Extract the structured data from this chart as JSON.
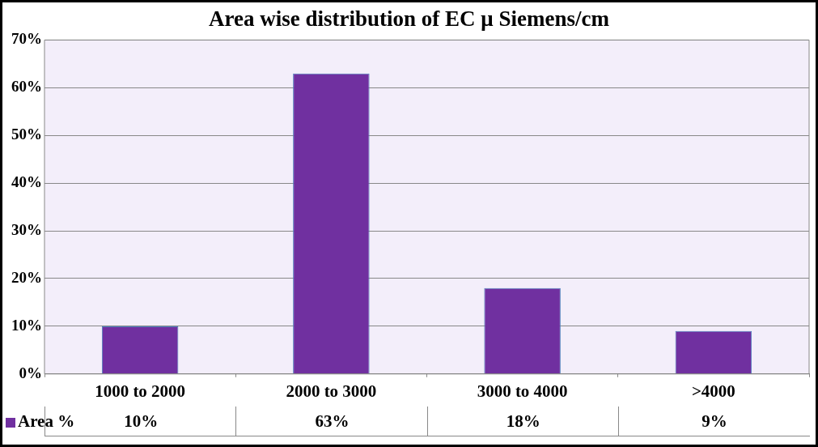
{
  "chart_data": {
    "type": "bar",
    "title": "Area wise distribution of EC μ Siemens/cm",
    "categories": [
      "1000 to 2000",
      "2000 to 3000",
      "3000 to 4000",
      ">4000"
    ],
    "series": [
      {
        "name": "Area %",
        "color": "#7030a0",
        "values": [
          10,
          63,
          18,
          9
        ]
      }
    ],
    "ylim": [
      0,
      70
    ],
    "yticks": [
      {
        "value": 0,
        "label": "0%"
      },
      {
        "value": 10,
        "label": "10%"
      },
      {
        "value": 20,
        "label": "20%"
      },
      {
        "value": 30,
        "label": "30%"
      },
      {
        "value": 40,
        "label": "40%"
      },
      {
        "value": 50,
        "label": "50%"
      },
      {
        "value": 60,
        "label": "60%"
      },
      {
        "value": 70,
        "label": "70%"
      }
    ],
    "value_labels": [
      "10%",
      "63%",
      "18%",
      "9%"
    ],
    "grid": "y",
    "legend": "bottom left"
  }
}
